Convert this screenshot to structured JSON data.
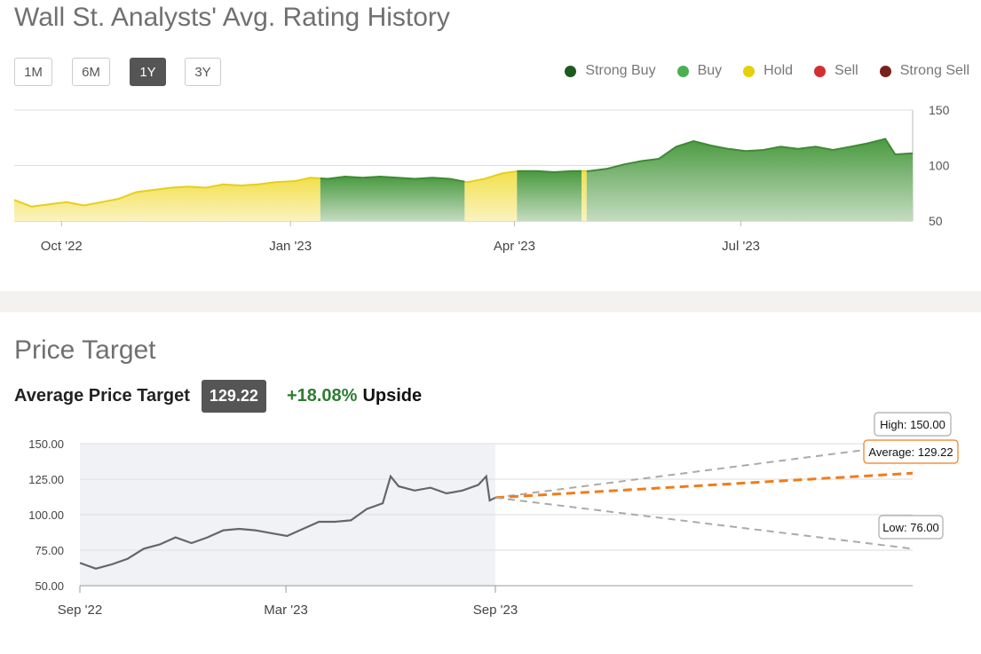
{
  "rating_history": {
    "title": "Wall St. Analysts' Avg. Rating History",
    "ranges": [
      "1M",
      "6M",
      "1Y",
      "3Y"
    ],
    "active_range": "1Y",
    "legend": [
      {
        "label": "Strong Buy",
        "color": "#1e5a1e"
      },
      {
        "label": "Buy",
        "color": "#4caf50"
      },
      {
        "label": "Hold",
        "color": "#e6d00b"
      },
      {
        "label": "Sell",
        "color": "#d32f2f"
      },
      {
        "label": "Strong Sell",
        "color": "#7b1e1e"
      }
    ]
  },
  "price_target": {
    "title": "Price Target",
    "average_label": "Average Price Target",
    "average_value": "129.22",
    "upside_value": "+18.08%",
    "upside_label": "Upside"
  },
  "chart_data": [
    {
      "type": "area",
      "title": "Wall St. Analysts' Avg. Rating History",
      "x_tick_labels": [
        "Oct '22",
        "Jan '23",
        "Apr '23",
        "Jul '23"
      ],
      "y_ticks": [
        50,
        100,
        150
      ],
      "ylim": [
        50,
        150
      ],
      "grid": true,
      "legend_position": "top-right",
      "price_series": [
        {
          "date": "2022-09-12",
          "price": 69,
          "rating": "Hold"
        },
        {
          "date": "2022-09-19",
          "price": 63,
          "rating": "Hold"
        },
        {
          "date": "2022-09-26",
          "price": 65,
          "rating": "Hold"
        },
        {
          "date": "2022-10-03",
          "price": 67,
          "rating": "Hold"
        },
        {
          "date": "2022-10-10",
          "price": 64,
          "rating": "Hold"
        },
        {
          "date": "2022-10-17",
          "price": 67,
          "rating": "Hold"
        },
        {
          "date": "2022-10-24",
          "price": 70,
          "rating": "Hold"
        },
        {
          "date": "2022-10-31",
          "price": 76,
          "rating": "Hold"
        },
        {
          "date": "2022-11-07",
          "price": 78,
          "rating": "Hold"
        },
        {
          "date": "2022-11-14",
          "price": 80,
          "rating": "Hold"
        },
        {
          "date": "2022-11-21",
          "price": 81,
          "rating": "Hold"
        },
        {
          "date": "2022-11-28",
          "price": 80,
          "rating": "Hold"
        },
        {
          "date": "2022-12-05",
          "price": 83,
          "rating": "Hold"
        },
        {
          "date": "2022-12-12",
          "price": 82,
          "rating": "Hold"
        },
        {
          "date": "2022-12-19",
          "price": 83,
          "rating": "Hold"
        },
        {
          "date": "2022-12-26",
          "price": 85,
          "rating": "Hold"
        },
        {
          "date": "2023-01-03",
          "price": 86,
          "rating": "Hold"
        },
        {
          "date": "2023-01-09",
          "price": 89,
          "rating": "Hold"
        },
        {
          "date": "2023-01-16",
          "price": 88,
          "rating": "Buy"
        },
        {
          "date": "2023-01-23",
          "price": 90,
          "rating": "Buy"
        },
        {
          "date": "2023-01-30",
          "price": 89,
          "rating": "Buy"
        },
        {
          "date": "2023-02-06",
          "price": 90,
          "rating": "Buy"
        },
        {
          "date": "2023-02-13",
          "price": 89,
          "rating": "Buy"
        },
        {
          "date": "2023-02-20",
          "price": 88,
          "rating": "Buy"
        },
        {
          "date": "2023-02-27",
          "price": 89,
          "rating": "Buy"
        },
        {
          "date": "2023-03-06",
          "price": 88,
          "rating": "Buy"
        },
        {
          "date": "2023-03-13",
          "price": 85,
          "rating": "Hold"
        },
        {
          "date": "2023-03-20",
          "price": 88,
          "rating": "Hold"
        },
        {
          "date": "2023-03-27",
          "price": 93,
          "rating": "Hold"
        },
        {
          "date": "2023-04-03",
          "price": 95,
          "rating": "Buy"
        },
        {
          "date": "2023-04-10",
          "price": 95,
          "rating": "Buy"
        },
        {
          "date": "2023-04-17",
          "price": 94,
          "rating": "Buy"
        },
        {
          "date": "2023-04-24",
          "price": 95,
          "rating": "Buy"
        },
        {
          "date": "2023-05-01",
          "price": 95,
          "rating": "Buy"
        },
        {
          "date": "2023-05-08",
          "price": 97,
          "rating": "Buy"
        },
        {
          "date": "2023-05-15",
          "price": 101,
          "rating": "Buy"
        },
        {
          "date": "2023-05-22",
          "price": 104,
          "rating": "Buy"
        },
        {
          "date": "2023-05-29",
          "price": 106,
          "rating": "Buy"
        },
        {
          "date": "2023-06-05",
          "price": 117,
          "rating": "Buy"
        },
        {
          "date": "2023-06-12",
          "price": 122,
          "rating": "Buy"
        },
        {
          "date": "2023-06-19",
          "price": 118,
          "rating": "Buy"
        },
        {
          "date": "2023-06-26",
          "price": 115,
          "rating": "Buy"
        },
        {
          "date": "2023-07-03",
          "price": 113,
          "rating": "Buy"
        },
        {
          "date": "2023-07-10",
          "price": 114,
          "rating": "Buy"
        },
        {
          "date": "2023-07-17",
          "price": 117,
          "rating": "Buy"
        },
        {
          "date": "2023-07-24",
          "price": 115,
          "rating": "Buy"
        },
        {
          "date": "2023-07-31",
          "price": 117,
          "rating": "Buy"
        },
        {
          "date": "2023-08-07",
          "price": 114,
          "rating": "Buy"
        },
        {
          "date": "2023-08-14",
          "price": 117,
          "rating": "Buy"
        },
        {
          "date": "2023-08-21",
          "price": 120,
          "rating": "Buy"
        },
        {
          "date": "2023-08-28",
          "price": 124,
          "rating": "Buy"
        },
        {
          "date": "2023-09-01",
          "price": 110,
          "rating": "Buy"
        },
        {
          "date": "2023-09-08",
          "price": 111,
          "rating": "Buy"
        }
      ],
      "rating_periods": [
        {
          "start": "2022-09-12",
          "end": "2023-01-13",
          "rating": "Hold"
        },
        {
          "start": "2023-01-13",
          "end": "2023-03-12",
          "rating": "Buy"
        },
        {
          "start": "2023-03-12",
          "end": "2023-04-02",
          "rating": "Hold"
        },
        {
          "start": "2023-04-02",
          "end": "2023-04-28",
          "rating": "Buy"
        },
        {
          "start": "2023-04-28",
          "end": "2023-04-30",
          "rating": "Hold"
        },
        {
          "start": "2023-04-30",
          "end": "2023-09-08",
          "rating": "Buy"
        }
      ]
    },
    {
      "type": "line",
      "title": "Price Target",
      "x_tick_labels": [
        "Sep '22",
        "Mar '23",
        "Sep '23"
      ],
      "y_tick_labels": [
        "150.00",
        "125.00",
        "100.00",
        "75.00",
        "50.00"
      ],
      "ylim": [
        50,
        150
      ],
      "grid": true,
      "history": [
        {
          "date": "2022-09-05",
          "price": 66
        },
        {
          "date": "2022-09-19",
          "price": 62
        },
        {
          "date": "2022-10-03",
          "price": 65
        },
        {
          "date": "2022-10-17",
          "price": 69
        },
        {
          "date": "2022-10-31",
          "price": 76
        },
        {
          "date": "2022-11-14",
          "price": 79
        },
        {
          "date": "2022-11-28",
          "price": 84
        },
        {
          "date": "2022-12-12",
          "price": 80
        },
        {
          "date": "2022-12-26",
          "price": 84
        },
        {
          "date": "2023-01-09",
          "price": 89
        },
        {
          "date": "2023-01-23",
          "price": 90
        },
        {
          "date": "2023-02-06",
          "price": 89
        },
        {
          "date": "2023-02-20",
          "price": 87
        },
        {
          "date": "2023-03-06",
          "price": 85
        },
        {
          "date": "2023-03-20",
          "price": 90
        },
        {
          "date": "2023-04-03",
          "price": 95
        },
        {
          "date": "2023-04-17",
          "price": 95
        },
        {
          "date": "2023-05-01",
          "price": 96
        },
        {
          "date": "2023-05-15",
          "price": 104
        },
        {
          "date": "2023-05-29",
          "price": 108
        },
        {
          "date": "2023-06-05",
          "price": 127
        },
        {
          "date": "2023-06-12",
          "price": 120
        },
        {
          "date": "2023-06-26",
          "price": 117
        },
        {
          "date": "2023-07-10",
          "price": 119
        },
        {
          "date": "2023-07-24",
          "price": 115
        },
        {
          "date": "2023-08-07",
          "price": 117
        },
        {
          "date": "2023-08-21",
          "price": 121
        },
        {
          "date": "2023-08-28",
          "price": 127
        },
        {
          "date": "2023-08-31",
          "price": 110
        },
        {
          "date": "2023-09-05",
          "price": 112
        }
      ],
      "forecast_start": {
        "date": "2023-09-05",
        "price": 112
      },
      "forecast_end_date": "2024-09-05",
      "targets": [
        {
          "label": "High: 150.00",
          "value": 150.0,
          "color": "#aaaaaa"
        },
        {
          "label": "Average: 129.22",
          "value": 129.22,
          "color": "#f07c1a"
        },
        {
          "label": "Low: 76.00",
          "value": 76.0,
          "color": "#aaaaaa"
        }
      ]
    }
  ]
}
